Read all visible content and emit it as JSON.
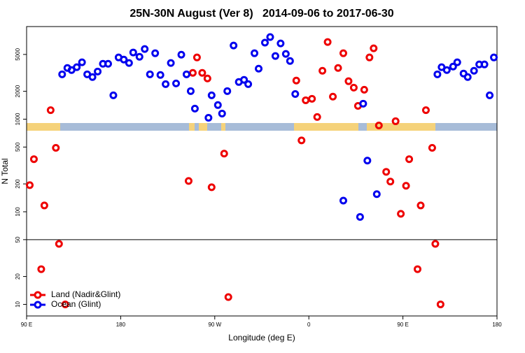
{
  "chart_data": {
    "type": "scatter",
    "title": "25N-30N August (Ver 8)   2014-09-06 to 2017-06-30",
    "x_label": "Longitude (deg E)",
    "y_label": "N Total",
    "log_y": true,
    "xlim": [
      90,
      540
    ],
    "ylim": [
      7.5,
      10000
    ],
    "xticks": [
      {
        "value": 90,
        "label": "90 E"
      },
      180,
      {
        "value": 270,
        "label": "90 W"
      },
      {
        "value": 360,
        "label": "0"
      },
      {
        "value": 450,
        "label": "90 E"
      },
      {
        "value": 540,
        "label": "180"
      }
    ],
    "yticks": [
      10,
      20,
      50,
      100,
      200,
      500,
      1000,
      2000,
      5000
    ],
    "hline": 50,
    "legend": "bottom-left",
    "series": [
      {
        "name": "Land (Nadir&Glint)",
        "color": "#ee0000",
        "x": [
          93,
          97,
          104,
          107,
          113,
          118,
          121,
          127,
          245,
          249,
          253,
          258,
          263,
          267,
          279,
          283,
          348,
          353,
          357,
          363,
          368,
          373,
          378,
          383,
          388,
          393,
          398,
          403,
          407,
          413,
          418,
          422,
          427,
          434,
          438,
          443,
          448,
          453,
          456,
          464,
          467,
          472,
          478,
          481,
          486
        ],
        "values": [
          194,
          370,
          24,
          117,
          1250,
          490,
          45,
          10,
          215,
          3160,
          4640,
          3160,
          2750,
          184,
          425,
          12,
          2610,
          590,
          1600,
          1660,
          1055,
          3330,
          6810,
          1750,
          3570,
          5150,
          2570,
          2190,
          1390,
          2080,
          4640,
          5820,
          855,
          270,
          212,
          950,
          95,
          191,
          370,
          24,
          117,
          1250,
          490,
          45,
          10
        ]
      },
      {
        "name": "Ocean (Glint)",
        "color": "#0000ee",
        "x": [
          124,
          129,
          133,
          138,
          143,
          148,
          153,
          158,
          163,
          168,
          173,
          178,
          183,
          188,
          192,
          198,
          203,
          208,
          213,
          218,
          223,
          228,
          233,
          238,
          243,
          247,
          251,
          264,
          267,
          273,
          277,
          282,
          288,
          293,
          298,
          302,
          308,
          312,
          318,
          323,
          328,
          333,
          338,
          342,
          347,
          393,
          409,
          412,
          416,
          425,
          483,
          487,
          492,
          498,
          502,
          508,
          512,
          518,
          523,
          528,
          533,
          537
        ],
        "values": [
          3050,
          3570,
          3390,
          3640,
          4110,
          3050,
          2850,
          3270,
          3960,
          3960,
          1810,
          4640,
          4400,
          4040,
          5250,
          4720,
          5720,
          3050,
          5150,
          3000,
          2390,
          4040,
          2430,
          4970,
          3050,
          2010,
          1300,
          1035,
          1810,
          1420,
          1150,
          2010,
          6240,
          2520,
          2660,
          2390,
          5150,
          3510,
          6700,
          7700,
          4810,
          6580,
          5070,
          4250,
          1870,
          132,
          88,
          1470,
          357,
          155,
          3050,
          3640,
          3390,
          3700,
          4110,
          3110,
          2850,
          3330,
          3900,
          3900,
          1810,
          4640
        ]
      }
    ]
  }
}
